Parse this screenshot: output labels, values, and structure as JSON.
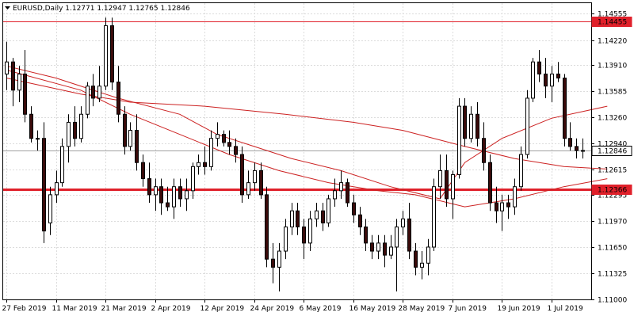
{
  "header": {
    "symbol_line": "EURUSD,Daily  1.12771 1.12947 1.12765 1.12846"
  },
  "chart_data": {
    "type": "candlestick",
    "symbol": "EURUSD",
    "timeframe": "Daily",
    "ohlc_label": [
      "1.12771",
      "1.12947",
      "1.12765",
      "1.12846"
    ],
    "ylim": [
      1.11,
      1.1468
    ],
    "y_ticks": [
      "1.14555",
      "1.14220",
      "1.13910",
      "1.13585",
      "1.13260",
      "1.12940",
      "1.12615",
      "1.12295",
      "1.11970",
      "1.11650",
      "1.11325",
      "1.11000"
    ],
    "x_ticks": [
      "27 Feb 2019",
      "11 Mar 2019",
      "21 Mar 2019",
      "2 Apr 2019",
      "12 Apr 2019",
      "24 Apr 2019",
      "6 May 2019",
      "16 May 2019",
      "28 May 2019",
      "7 Jun 2019",
      "19 Jun 2019",
      "1 Jul 2019"
    ],
    "horizontal_lines": [
      {
        "value": 1.14455,
        "label": "1.14455",
        "color": "#e0202a",
        "style": "thin"
      },
      {
        "value": 1.12366,
        "label": "1.12366",
        "color": "#e0202a",
        "style": "thick"
      },
      {
        "value": 1.12846,
        "label": "1.12846",
        "color": "#a0a0a0",
        "style": "current"
      }
    ],
    "colors": {
      "bull": "#ffffff",
      "bear": "#3a0a0a",
      "wick": "#000000",
      "ma": "#cc2222",
      "grid": "#dcdcdc",
      "level": "#e0202a"
    },
    "candles": [
      [
        1.138,
        1.142,
        1.136,
        1.1395
      ],
      [
        1.1395,
        1.14,
        1.134,
        1.136
      ],
      [
        1.136,
        1.139,
        1.1345,
        1.138
      ],
      [
        1.138,
        1.141,
        1.132,
        1.133
      ],
      [
        1.133,
        1.134,
        1.1295,
        1.13
      ],
      [
        1.13,
        1.131,
        1.1285,
        1.13
      ],
      [
        1.13,
        1.132,
        1.117,
        1.1185
      ],
      [
        1.1195,
        1.124,
        1.118,
        1.123
      ],
      [
        1.123,
        1.126,
        1.122,
        1.1245
      ],
      [
        1.1245,
        1.13,
        1.124,
        1.129
      ],
      [
        1.129,
        1.133,
        1.127,
        1.132
      ],
      [
        1.132,
        1.134,
        1.129,
        1.13
      ],
      [
        1.13,
        1.134,
        1.1295,
        1.133
      ],
      [
        1.133,
        1.137,
        1.1325,
        1.1365
      ],
      [
        1.1365,
        1.138,
        1.134,
        1.135
      ],
      [
        1.135,
        1.139,
        1.1345,
        1.1365
      ],
      [
        1.1365,
        1.145,
        1.136,
        1.144
      ],
      [
        1.144,
        1.145,
        1.136,
        1.137
      ],
      [
        1.137,
        1.139,
        1.132,
        1.133
      ],
      [
        1.133,
        1.134,
        1.128,
        1.129
      ],
      [
        1.129,
        1.132,
        1.1285,
        1.131
      ],
      [
        1.131,
        1.133,
        1.126,
        1.127
      ],
      [
        1.127,
        1.128,
        1.124,
        1.125
      ],
      [
        1.125,
        1.127,
        1.122,
        1.123
      ],
      [
        1.123,
        1.125,
        1.121,
        1.124
      ],
      [
        1.124,
        1.125,
        1.1205,
        1.122
      ],
      [
        1.122,
        1.124,
        1.121,
        1.1215
      ],
      [
        1.1215,
        1.125,
        1.12,
        1.124
      ],
      [
        1.124,
        1.125,
        1.1215,
        1.1225
      ],
      [
        1.1225,
        1.125,
        1.121,
        1.1235
      ],
      [
        1.1235,
        1.127,
        1.1225,
        1.1265
      ],
      [
        1.1265,
        1.128,
        1.1255,
        1.127
      ],
      [
        1.127,
        1.129,
        1.1255,
        1.1265
      ],
      [
        1.1265,
        1.131,
        1.126,
        1.13
      ],
      [
        1.13,
        1.132,
        1.129,
        1.1305
      ],
      [
        1.1305,
        1.131,
        1.129,
        1.1295
      ],
      [
        1.1295,
        1.131,
        1.128,
        1.129
      ],
      [
        1.129,
        1.13,
        1.127,
        1.128
      ],
      [
        1.128,
        1.129,
        1.122,
        1.123
      ],
      [
        1.123,
        1.126,
        1.1225,
        1.1245
      ],
      [
        1.1245,
        1.127,
        1.1235,
        1.126
      ],
      [
        1.126,
        1.127,
        1.1225,
        1.123
      ],
      [
        1.123,
        1.124,
        1.114,
        1.115
      ],
      [
        1.115,
        1.117,
        1.112,
        1.114
      ],
      [
        1.114,
        1.117,
        1.111,
        1.116
      ],
      [
        1.116,
        1.12,
        1.115,
        1.119
      ],
      [
        1.119,
        1.122,
        1.118,
        1.121
      ],
      [
        1.121,
        1.122,
        1.118,
        1.119
      ],
      [
        1.119,
        1.12,
        1.115,
        1.117
      ],
      [
        1.117,
        1.121,
        1.116,
        1.12
      ],
      [
        1.12,
        1.122,
        1.119,
        1.121
      ],
      [
        1.121,
        1.122,
        1.1185,
        1.1195
      ],
      [
        1.1195,
        1.123,
        1.119,
        1.1225
      ],
      [
        1.1225,
        1.125,
        1.1215,
        1.1235
      ],
      [
        1.1235,
        1.126,
        1.1225,
        1.1245
      ],
      [
        1.1245,
        1.125,
        1.1215,
        1.122
      ],
      [
        1.122,
        1.123,
        1.1195,
        1.1205
      ],
      [
        1.1205,
        1.1215,
        1.118,
        1.119
      ],
      [
        1.119,
        1.12,
        1.116,
        1.117
      ],
      [
        1.117,
        1.118,
        1.115,
        1.116
      ],
      [
        1.116,
        1.118,
        1.115,
        1.117
      ],
      [
        1.117,
        1.118,
        1.114,
        1.1155
      ],
      [
        1.1155,
        1.118,
        1.115,
        1.1165
      ],
      [
        1.1165,
        1.12,
        1.111,
        1.119
      ],
      [
        1.119,
        1.121,
        1.118,
        1.12
      ],
      [
        1.12,
        1.122,
        1.115,
        1.116
      ],
      [
        1.116,
        1.117,
        1.113,
        1.114
      ],
      [
        1.114,
        1.116,
        1.1125,
        1.1145
      ],
      [
        1.1145,
        1.1175,
        1.113,
        1.1165
      ],
      [
        1.1165,
        1.125,
        1.116,
        1.124
      ],
      [
        1.124,
        1.128,
        1.1225,
        1.126
      ],
      [
        1.126,
        1.128,
        1.1215,
        1.1225
      ],
      [
        1.1225,
        1.126,
        1.12,
        1.1255
      ],
      [
        1.1255,
        1.135,
        1.125,
        1.134
      ],
      [
        1.134,
        1.135,
        1.129,
        1.13
      ],
      [
        1.13,
        1.134,
        1.1295,
        1.133
      ],
      [
        1.133,
        1.1345,
        1.129,
        1.13
      ],
      [
        1.13,
        1.132,
        1.126,
        1.127
      ],
      [
        1.127,
        1.128,
        1.121,
        1.122
      ],
      [
        1.122,
        1.124,
        1.1195,
        1.121
      ],
      [
        1.121,
        1.123,
        1.1185,
        1.122
      ],
      [
        1.122,
        1.123,
        1.12,
        1.1215
      ],
      [
        1.1215,
        1.125,
        1.1205,
        1.124
      ],
      [
        1.124,
        1.129,
        1.1235,
        1.128
      ],
      [
        1.128,
        1.136,
        1.1275,
        1.135
      ],
      [
        1.135,
        1.14,
        1.1345,
        1.1395
      ],
      [
        1.1395,
        1.141,
        1.137,
        1.138
      ],
      [
        1.138,
        1.14,
        1.135,
        1.1365
      ],
      [
        1.1365,
        1.139,
        1.1345,
        1.138
      ],
      [
        1.138,
        1.1395,
        1.137,
        1.1375
      ],
      [
        1.1375,
        1.138,
        1.129,
        1.13
      ],
      [
        1.13,
        1.132,
        1.1285,
        1.129
      ],
      [
        1.129,
        1.13,
        1.1275,
        1.1285
      ],
      [
        1.1285,
        1.13,
        1.1275,
        1.1285
      ]
    ],
    "moving_averages": [
      {
        "points": [
          [
            0,
            1.1375
          ],
          [
            12,
            1.1355
          ],
          [
            20,
            1.1345
          ],
          [
            32,
            1.134
          ],
          [
            45,
            1.133
          ],
          [
            56,
            1.132
          ],
          [
            64,
            1.131
          ],
          [
            74,
            1.129
          ],
          [
            82,
            1.1275
          ],
          [
            90,
            1.1265
          ],
          [
            97,
            1.1262
          ]
        ]
      },
      {
        "points": [
          [
            0,
            1.1385
          ],
          [
            12,
            1.136
          ],
          [
            20,
            1.133
          ],
          [
            28,
            1.1305
          ],
          [
            36,
            1.128
          ],
          [
            44,
            1.126
          ],
          [
            52,
            1.1245
          ],
          [
            60,
            1.1235
          ],
          [
            66,
            1.123
          ],
          [
            74,
            1.1215
          ],
          [
            82,
            1.1225
          ],
          [
            90,
            1.124
          ],
          [
            97,
            1.125
          ]
        ]
      },
      {
        "points": [
          [
            0,
            1.139
          ],
          [
            8,
            1.1375
          ],
          [
            18,
            1.135
          ],
          [
            28,
            1.133
          ],
          [
            34,
            1.1305
          ],
          [
            40,
            1.129
          ],
          [
            46,
            1.1275
          ],
          [
            54,
            1.126
          ],
          [
            62,
            1.124
          ],
          [
            70,
            1.1225
          ],
          [
            74,
            1.127
          ],
          [
            80,
            1.13
          ],
          [
            88,
            1.1325
          ],
          [
            97,
            1.134
          ]
        ]
      }
    ]
  }
}
